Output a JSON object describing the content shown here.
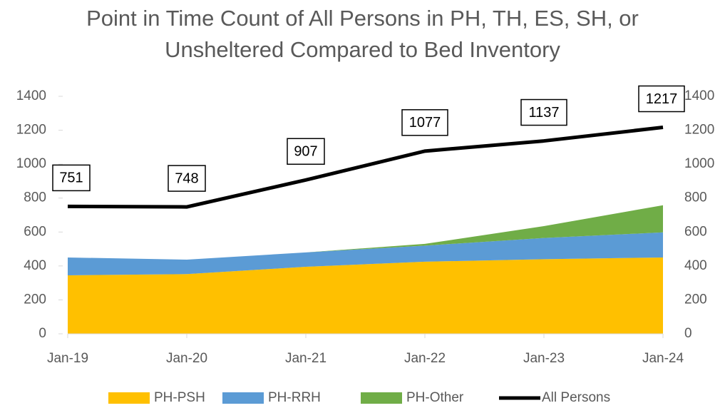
{
  "chart_data": {
    "type": "stacked_area_line",
    "title": "Point in Time Count of All Persons in PH, TH, ES, SH, or Unsheltered Compared to Bed Inventory",
    "categories": [
      "Jan-19",
      "Jan-20",
      "Jan-21",
      "Jan-22",
      "Jan-23",
      "Jan-24"
    ],
    "series": [
      {
        "name": "PH-PSH",
        "color": "#ffc000",
        "kind": "area",
        "values": [
          345,
          352,
          395,
          425,
          440,
          450
        ]
      },
      {
        "name": "PH-RRH",
        "color": "#5b9bd5",
        "kind": "area",
        "values": [
          105,
          85,
          85,
          95,
          125,
          148
        ]
      },
      {
        "name": "PH-Other",
        "color": "#70ad47",
        "kind": "area",
        "values": [
          0,
          0,
          0,
          10,
          70,
          160
        ]
      },
      {
        "name": "All Persons",
        "color": "#000000",
        "kind": "line",
        "axis": "y2",
        "values": [
          751,
          748,
          907,
          1077,
          1137,
          1217
        ]
      }
    ],
    "ylim": [
      0,
      1400
    ],
    "yticks": [
      0,
      200,
      400,
      600,
      800,
      1000,
      1200,
      1400
    ],
    "y2lim": [
      0,
      1400
    ],
    "y2ticks": [
      0,
      200,
      400,
      600,
      800,
      1000,
      1200,
      1400
    ],
    "legend": "bottom"
  }
}
